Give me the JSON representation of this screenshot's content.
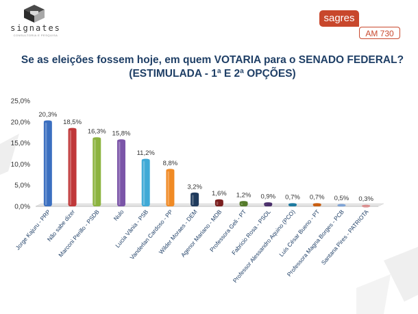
{
  "header": {
    "logo_name": "signates",
    "logo_tagline": "CONSULTORIA E PESQUISA",
    "brand_name": "sagres",
    "brand_band": "AM 730"
  },
  "chart_data": {
    "type": "bar",
    "title": "Se as eleições fossem hoje, em quem VOTARIA para o SENADO FEDERAL? (ESTIMULADA - 1ª E 2ª OPÇÕES)",
    "xlabel": "",
    "ylabel": "",
    "ylim": [
      0,
      25
    ],
    "yticks": [
      "0,0%",
      "5,0%",
      "10,0%",
      "15,0%",
      "20,0%",
      "25,0%"
    ],
    "grid": false,
    "legend": "none",
    "categories": [
      "Jorge Kajuru - PRP",
      "Não sabe dizer",
      "Marconi Perillo - PSDB",
      "Nulo",
      "Lucia Vânia - PSB",
      "Vanderlan Cardoso - PP",
      "Wilder Moraes - DEM",
      "Agenor Mariano - MDB",
      "Professora Geli - PT",
      "Fabricio Rosa - PSOL",
      "Professor Alessandro Aquino (PCO)",
      "Luis César Bueno - PT",
      "Professora Magna Borges - PCB",
      "Santana Pires - PATRIOTA"
    ],
    "values": [
      20.3,
      18.5,
      16.3,
      15.8,
      11.2,
      8.8,
      3.2,
      1.6,
      1.2,
      0.9,
      0.7,
      0.7,
      0.5,
      0.3
    ],
    "data_labels": [
      "20,3%",
      "18,5%",
      "16,3%",
      "15,8%",
      "11,2%",
      "8,8%",
      "3,2%",
      "1,6%",
      "1,2%",
      "0,9%",
      "0,7%",
      "0,7%",
      "0,5%",
      "0,3%"
    ],
    "colors": [
      "#3b6fc0",
      "#c0383a",
      "#8cb33f",
      "#7b55a8",
      "#3fa9d6",
      "#f08a24",
      "#1f3a5c",
      "#7a1e1e",
      "#557a2a",
      "#4a2f6b",
      "#1d7aa0",
      "#c95e12",
      "#7fa4d6",
      "#d98a8a"
    ]
  }
}
